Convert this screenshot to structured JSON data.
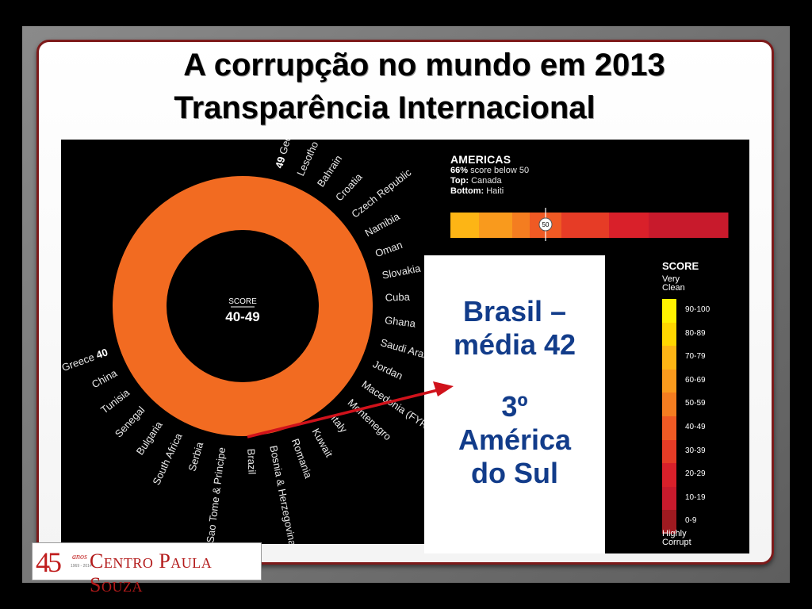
{
  "slide": {
    "title_line1": "A corrupção no mundo em 2013",
    "title_line2": "Transparência Internacional"
  },
  "graphic": {
    "donut_color": "#f26b21",
    "center_label": "SCORE",
    "center_value": "40-49",
    "countries_right": [
      {
        "name": "Georgia",
        "score": "49"
      },
      {
        "name": "Lesotho"
      },
      {
        "name": "Bahrain"
      },
      {
        "name": "Croatia"
      },
      {
        "name": "Czech Republic"
      },
      {
        "name": "Namibia"
      },
      {
        "name": "Oman"
      },
      {
        "name": "Slovakia"
      },
      {
        "name": "Cuba"
      },
      {
        "name": "Ghana"
      },
      {
        "name": "Saudi Arabia"
      },
      {
        "name": "Jordan"
      },
      {
        "name": "Macedonia (FYR)"
      },
      {
        "name": "Montenegro"
      },
      {
        "name": "Italy"
      },
      {
        "name": "Kuwait"
      },
      {
        "name": "Romania"
      },
      {
        "name": "Bosnia & Herzegovina"
      },
      {
        "name": "Brazil"
      },
      {
        "name": "Sao Tome & Principe"
      },
      {
        "name": "Serbia"
      },
      {
        "name": "South Africa"
      },
      {
        "name": "Bulgaria"
      },
      {
        "name": "Senegal"
      },
      {
        "name": "Tunisia"
      },
      {
        "name": "China"
      },
      {
        "name": "Greece",
        "score": "40"
      }
    ],
    "americas": {
      "heading": "AMERICAS",
      "pct": "66%",
      "pct_text": "score below 50",
      "top_label": "Top:",
      "top_value": "Canada",
      "bottom_label": "Bottom:",
      "bottom_value": "Haiti",
      "marker": "50",
      "bar_colors": [
        "#fdb515",
        "#f99a1d",
        "#f47d20",
        "#ef5a24",
        "#e63c26",
        "#d9202a",
        "#c81a2c"
      ]
    },
    "scale": {
      "title": "SCORE",
      "top_label_1": "Very",
      "top_label_2": "Clean",
      "bottom_label_1": "Highly",
      "bottom_label_2": "Corrupt",
      "ranges": [
        "90-100",
        "80-89",
        "70-79",
        "60-69",
        "50-59",
        "40-49",
        "30-39",
        "20-29",
        "10-19",
        "0-9"
      ],
      "colors": [
        "#fff200",
        "#ffd700",
        "#fdb515",
        "#f99a1d",
        "#f47d20",
        "#ef5a24",
        "#e63c26",
        "#d9202a",
        "#c81a2c",
        "#9e1a20"
      ]
    }
  },
  "highlight": {
    "line1": "Brasil –",
    "line2": "média 42",
    "line3": "3º",
    "line4": "América",
    "line5": "do Sul",
    "text_color": "#123c8a"
  },
  "logo": {
    "number": "45",
    "anos": "anos",
    "years": "1969 - 2014",
    "name": "Centro Paula Souza"
  }
}
